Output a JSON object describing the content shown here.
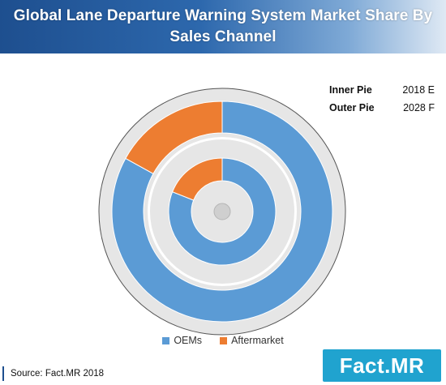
{
  "header": {
    "title_line1": "Global Lane Departure Warning System Market Share By",
    "title_line2": "Sales Channel"
  },
  "pie_key": {
    "inner_label": "Inner Pie",
    "inner_value": "2018 E",
    "outer_label": "Outer Pie",
    "outer_value": "2028 F"
  },
  "chart_data": {
    "type": "pie",
    "subtype": "nested-donut",
    "title": "Global Lane Departure Warning System Market Share By Sales Channel",
    "categories": [
      "OEMs",
      "Aftermarket"
    ],
    "colors": {
      "OEMs": "#5b9bd5",
      "Aftermarket": "#ed7d31",
      "track": "#e6e6e6",
      "center": "#cfcfcf"
    },
    "rings": [
      {
        "name": "Inner Pie",
        "period": "2018 E",
        "values": [
          81,
          19
        ]
      },
      {
        "name": "Outer Pie",
        "period": "2028 F",
        "values": [
          83,
          17
        ]
      }
    ],
    "legend": "bottom-center"
  },
  "legend": {
    "items": [
      {
        "label": "OEMs",
        "color": "#5b9bd5"
      },
      {
        "label": "Aftermarket",
        "color": "#ed7d31"
      }
    ]
  },
  "footer": {
    "source": "Source: Fact.MR  2018",
    "logo": "Fact.MR"
  }
}
